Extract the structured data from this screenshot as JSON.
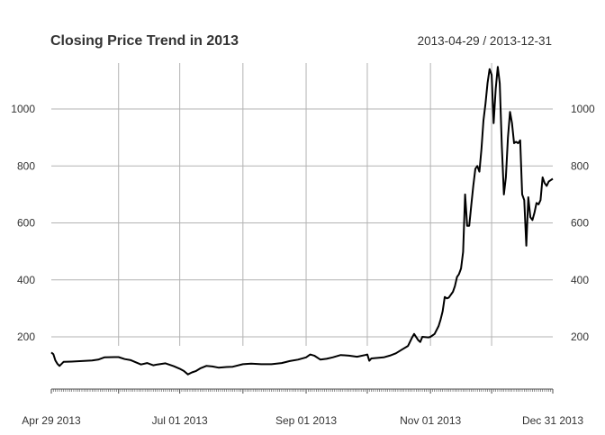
{
  "chart_data": {
    "type": "line",
    "title": "Closing Price Trend in 2013",
    "date_range": "2013-04-29 / 2013-12-31",
    "xlabel": "",
    "ylabel": "",
    "x_range": [
      "2013-04-29",
      "2013-12-31"
    ],
    "ylim": [
      40,
      1150
    ],
    "y_ticks": [
      200,
      400,
      600,
      800,
      1000
    ],
    "y_tick_labels": [
      "200",
      "400",
      "600",
      "800",
      "1000"
    ],
    "x_major_ticks": [
      {
        "date": "2013-04-29",
        "label": "Apr 29 2013"
      },
      {
        "date": "2013-07-01",
        "label": "Jul 01 2013"
      },
      {
        "date": "2013-09-01",
        "label": "Sep 01 2013"
      },
      {
        "date": "2013-11-01",
        "label": "Nov 01 2013"
      },
      {
        "date": "2013-12-31",
        "label": "Dec 31 2013"
      }
    ],
    "x_grid_dates": [
      "2013-06-01",
      "2013-07-01",
      "2013-08-01",
      "2013-09-01",
      "2013-10-01",
      "2013-11-01",
      "2013-12-01"
    ],
    "grid": true,
    "line_color": "#000000",
    "grid_color": "#b3b3b3",
    "series": [
      {
        "values": [
          [
            "2013-04-29",
            145
          ],
          [
            "2013-04-30",
            139
          ],
          [
            "2013-05-01",
            117
          ],
          [
            "2013-05-02",
            105
          ],
          [
            "2013-05-03",
            98
          ],
          [
            "2013-05-05",
            112
          ],
          [
            "2013-05-09",
            113
          ],
          [
            "2013-05-14",
            115
          ],
          [
            "2013-05-19",
            117
          ],
          [
            "2013-05-22",
            120
          ],
          [
            "2013-05-25",
            128
          ],
          [
            "2013-05-30",
            129
          ],
          [
            "2013-06-01",
            129
          ],
          [
            "2013-06-04",
            122
          ],
          [
            "2013-06-07",
            118
          ],
          [
            "2013-06-10",
            109
          ],
          [
            "2013-06-12",
            103
          ],
          [
            "2013-06-15",
            108
          ],
          [
            "2013-06-18",
            100
          ],
          [
            "2013-06-20",
            103
          ],
          [
            "2013-06-24",
            107
          ],
          [
            "2013-06-28",
            97
          ],
          [
            "2013-07-01",
            88
          ],
          [
            "2013-07-03",
            80
          ],
          [
            "2013-07-05",
            68
          ],
          [
            "2013-07-07",
            75
          ],
          [
            "2013-07-09",
            80
          ],
          [
            "2013-07-11",
            89
          ],
          [
            "2013-07-14",
            98
          ],
          [
            "2013-07-17",
            96
          ],
          [
            "2013-07-20",
            92
          ],
          [
            "2013-07-24",
            94
          ],
          [
            "2013-07-27",
            95
          ],
          [
            "2013-08-01",
            104
          ],
          [
            "2013-08-05",
            106
          ],
          [
            "2013-08-10",
            104
          ],
          [
            "2013-08-15",
            104
          ],
          [
            "2013-08-20",
            108
          ],
          [
            "2013-08-24",
            115
          ],
          [
            "2013-08-28",
            120
          ],
          [
            "2013-09-01",
            128
          ],
          [
            "2013-09-03",
            138
          ],
          [
            "2013-09-05",
            134
          ],
          [
            "2013-09-08",
            120
          ],
          [
            "2013-09-11",
            123
          ],
          [
            "2013-09-14",
            128
          ],
          [
            "2013-09-18",
            136
          ],
          [
            "2013-09-22",
            134
          ],
          [
            "2013-09-26",
            130
          ],
          [
            "2013-09-30",
            136
          ],
          [
            "2013-10-01",
            138
          ],
          [
            "2013-10-02",
            116
          ],
          [
            "2013-10-03",
            124
          ],
          [
            "2013-10-06",
            126
          ],
          [
            "2013-10-09",
            128
          ],
          [
            "2013-10-12",
            134
          ],
          [
            "2013-10-15",
            142
          ],
          [
            "2013-10-18",
            155
          ],
          [
            "2013-10-21",
            168
          ],
          [
            "2013-10-23",
            198
          ],
          [
            "2013-10-24",
            210
          ],
          [
            "2013-10-26",
            188
          ],
          [
            "2013-10-27",
            182
          ],
          [
            "2013-10-28",
            200
          ],
          [
            "2013-10-31",
            198
          ],
          [
            "2013-11-01",
            200
          ],
          [
            "2013-11-03",
            210
          ],
          [
            "2013-11-05",
            238
          ],
          [
            "2013-11-06",
            262
          ],
          [
            "2013-11-07",
            290
          ],
          [
            "2013-11-08",
            340
          ],
          [
            "2013-11-09",
            335
          ],
          [
            "2013-11-10",
            338
          ],
          [
            "2013-11-12",
            358
          ],
          [
            "2013-11-13",
            378
          ],
          [
            "2013-11-14",
            410
          ],
          [
            "2013-11-15",
            420
          ],
          [
            "2013-11-16",
            440
          ],
          [
            "2013-11-17",
            498
          ],
          [
            "2013-11-18",
            700
          ],
          [
            "2013-11-19",
            590
          ],
          [
            "2013-11-20",
            590
          ],
          [
            "2013-11-21",
            660
          ],
          [
            "2013-11-22",
            730
          ],
          [
            "2013-11-23",
            790
          ],
          [
            "2013-11-24",
            800
          ],
          [
            "2013-11-25",
            780
          ],
          [
            "2013-11-26",
            860
          ],
          [
            "2013-11-27",
            960
          ],
          [
            "2013-11-28",
            1020
          ],
          [
            "2013-11-29",
            1090
          ],
          [
            "2013-11-30",
            1140
          ],
          [
            "2013-12-01",
            1120
          ],
          [
            "2013-12-02",
            950
          ],
          [
            "2013-12-03",
            1070
          ],
          [
            "2013-12-04",
            1148
          ],
          [
            "2013-12-05",
            1090
          ],
          [
            "2013-12-06",
            870
          ],
          [
            "2013-12-07",
            700
          ],
          [
            "2013-12-08",
            760
          ],
          [
            "2013-12-09",
            900
          ],
          [
            "2013-12-10",
            990
          ],
          [
            "2013-12-11",
            950
          ],
          [
            "2013-12-12",
            880
          ],
          [
            "2013-12-13",
            885
          ],
          [
            "2013-12-14",
            880
          ],
          [
            "2013-12-15",
            890
          ],
          [
            "2013-12-16",
            700
          ],
          [
            "2013-12-17",
            680
          ],
          [
            "2013-12-18",
            520
          ],
          [
            "2013-12-19",
            690
          ],
          [
            "2013-12-20",
            620
          ],
          [
            "2013-12-21",
            610
          ],
          [
            "2013-12-22",
            635
          ],
          [
            "2013-12-23",
            670
          ],
          [
            "2013-12-24",
            665
          ],
          [
            "2013-12-25",
            680
          ],
          [
            "2013-12-26",
            760
          ],
          [
            "2013-12-27",
            740
          ],
          [
            "2013-12-28",
            730
          ],
          [
            "2013-12-29",
            745
          ],
          [
            "2013-12-30",
            750
          ],
          [
            "2013-12-31",
            755
          ]
        ]
      }
    ]
  }
}
